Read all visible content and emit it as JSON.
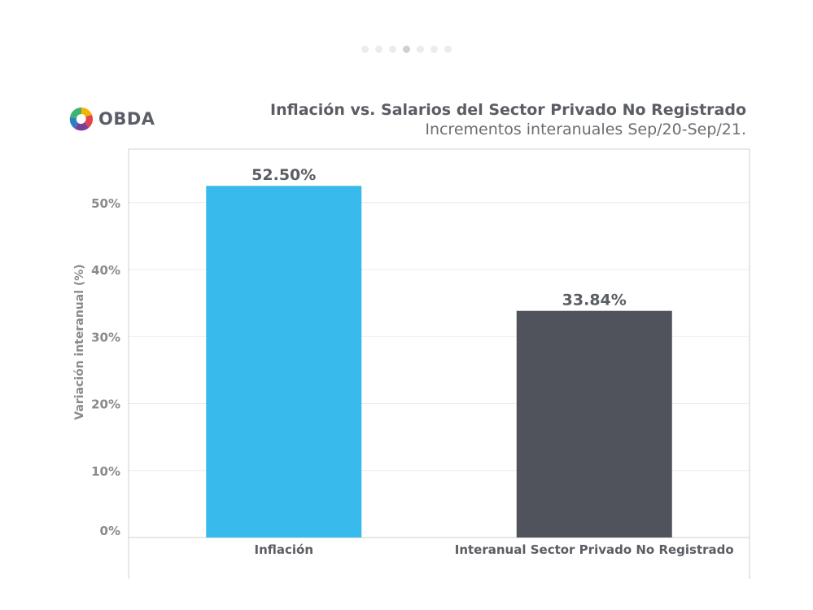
{
  "slider": {
    "dot_count": 7,
    "active_index": 3
  },
  "logo": {
    "text": "OBDA"
  },
  "header": {
    "title": "Inflación vs. Salarios del Sector Privado No Registrado",
    "subtitle": "Incrementos interanuales Sep/20-Sep/21."
  },
  "colors": {
    "inflacion": "#38bbec",
    "privado": "#51535c",
    "text_dark": "#5a5d63",
    "axis_text": "#8a8a8a",
    "grid": "#ececec"
  },
  "chart_data": {
    "type": "bar",
    "categories": [
      "Inflación",
      "Interanual Sector Privado No Registrado"
    ],
    "values": [
      52.5,
      33.84
    ],
    "data_labels": [
      "52.50%",
      "33.84%"
    ],
    "ylabel": "Variación interanual (%)",
    "ylim": [
      0,
      58
    ],
    "yticks": [
      0,
      10,
      20,
      30,
      40,
      50
    ],
    "ytick_labels": [
      "0%",
      "10%",
      "20%",
      "30%",
      "40%",
      "50%"
    ],
    "grid": true,
    "legend": "none"
  }
}
